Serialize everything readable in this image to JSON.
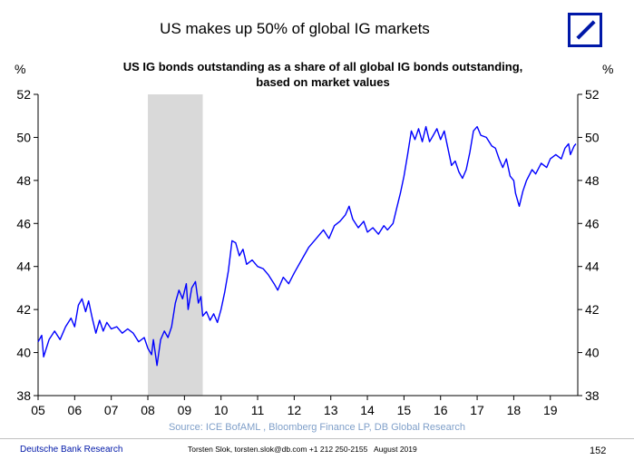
{
  "page": {
    "title": "US makes up 50% of global IG markets",
    "source": "Source: ICE BofAML , Bloomberg Finance LP, DB Global Research",
    "footer_left": "Deutsche Bank Research",
    "footer_author": "Torsten Slok, torsten.slok@db.com +1 212 250-2155",
    "footer_date": "August 2019",
    "page_number": "152",
    "brand_color": "#0018a8"
  },
  "chart_data": {
    "type": "line",
    "subtitle_line1": "US IG bonds outstanding as a share of all global IG bonds outstanding,",
    "subtitle_line2": "based on market values",
    "left_unit": "%",
    "right_unit": "%",
    "ylim": [
      38,
      52
    ],
    "yticks": [
      "38",
      "40",
      "42",
      "44",
      "46",
      "48",
      "50",
      "52"
    ],
    "xlim": [
      2005,
      2019.75
    ],
    "xticks": [
      {
        "x": 2005,
        "label": "05"
      },
      {
        "x": 2006,
        "label": "06"
      },
      {
        "x": 2007,
        "label": "07"
      },
      {
        "x": 2008,
        "label": "08"
      },
      {
        "x": 2009,
        "label": "09"
      },
      {
        "x": 2010,
        "label": "10"
      },
      {
        "x": 2011,
        "label": "11"
      },
      {
        "x": 2012,
        "label": "12"
      },
      {
        "x": 2013,
        "label": "13"
      },
      {
        "x": 2014,
        "label": "14"
      },
      {
        "x": 2015,
        "label": "15"
      },
      {
        "x": 2016,
        "label": "16"
      },
      {
        "x": 2017,
        "label": "17"
      },
      {
        "x": 2018,
        "label": "18"
      },
      {
        "x": 2019,
        "label": "19"
      }
    ],
    "recession": {
      "start": 2008.0,
      "end": 2009.5,
      "color": "#d9d9d9"
    },
    "series": [
      {
        "name": "US IG share",
        "color": "#0000ff",
        "points": [
          [
            2005.0,
            40.5
          ],
          [
            2005.1,
            40.8
          ],
          [
            2005.15,
            39.8
          ],
          [
            2005.3,
            40.6
          ],
          [
            2005.45,
            41.0
          ],
          [
            2005.6,
            40.6
          ],
          [
            2005.75,
            41.2
          ],
          [
            2005.9,
            41.6
          ],
          [
            2006.0,
            41.2
          ],
          [
            2006.1,
            42.2
          ],
          [
            2006.2,
            42.5
          ],
          [
            2006.3,
            41.9
          ],
          [
            2006.38,
            42.4
          ],
          [
            2006.48,
            41.6
          ],
          [
            2006.58,
            40.9
          ],
          [
            2006.68,
            41.5
          ],
          [
            2006.78,
            41.0
          ],
          [
            2006.88,
            41.4
          ],
          [
            2007.0,
            41.1
          ],
          [
            2007.15,
            41.2
          ],
          [
            2007.3,
            40.9
          ],
          [
            2007.45,
            41.1
          ],
          [
            2007.6,
            40.9
          ],
          [
            2007.75,
            40.5
          ],
          [
            2007.9,
            40.7
          ],
          [
            2008.0,
            40.2
          ],
          [
            2008.1,
            39.9
          ],
          [
            2008.15,
            40.6
          ],
          [
            2008.25,
            39.4
          ],
          [
            2008.35,
            40.6
          ],
          [
            2008.45,
            41.0
          ],
          [
            2008.55,
            40.7
          ],
          [
            2008.65,
            41.2
          ],
          [
            2008.75,
            42.3
          ],
          [
            2008.85,
            42.9
          ],
          [
            2008.95,
            42.5
          ],
          [
            2009.05,
            43.2
          ],
          [
            2009.1,
            42.0
          ],
          [
            2009.2,
            43.0
          ],
          [
            2009.3,
            43.3
          ],
          [
            2009.38,
            42.3
          ],
          [
            2009.45,
            42.6
          ],
          [
            2009.5,
            41.7
          ],
          [
            2009.6,
            41.9
          ],
          [
            2009.7,
            41.5
          ],
          [
            2009.8,
            41.8
          ],
          [
            2009.9,
            41.4
          ],
          [
            2010.0,
            42.0
          ],
          [
            2010.1,
            42.8
          ],
          [
            2010.2,
            43.8
          ],
          [
            2010.3,
            45.2
          ],
          [
            2010.4,
            45.1
          ],
          [
            2010.5,
            44.5
          ],
          [
            2010.6,
            44.8
          ],
          [
            2010.7,
            44.1
          ],
          [
            2010.85,
            44.3
          ],
          [
            2011.0,
            44.0
          ],
          [
            2011.15,
            43.9
          ],
          [
            2011.3,
            43.6
          ],
          [
            2011.45,
            43.2
          ],
          [
            2011.55,
            42.9
          ],
          [
            2011.7,
            43.5
          ],
          [
            2011.85,
            43.2
          ],
          [
            2012.0,
            43.7
          ],
          [
            2012.2,
            44.3
          ],
          [
            2012.4,
            44.9
          ],
          [
            2012.6,
            45.3
          ],
          [
            2012.8,
            45.7
          ],
          [
            2012.95,
            45.3
          ],
          [
            2013.1,
            45.9
          ],
          [
            2013.25,
            46.1
          ],
          [
            2013.4,
            46.4
          ],
          [
            2013.5,
            46.8
          ],
          [
            2013.6,
            46.2
          ],
          [
            2013.75,
            45.8
          ],
          [
            2013.9,
            46.1
          ],
          [
            2014.0,
            45.6
          ],
          [
            2014.15,
            45.8
          ],
          [
            2014.3,
            45.5
          ],
          [
            2014.45,
            45.9
          ],
          [
            2014.55,
            45.7
          ],
          [
            2014.7,
            46.0
          ],
          [
            2014.8,
            46.7
          ],
          [
            2014.9,
            47.4
          ],
          [
            2015.0,
            48.2
          ],
          [
            2015.1,
            49.2
          ],
          [
            2015.2,
            50.3
          ],
          [
            2015.3,
            49.9
          ],
          [
            2015.4,
            50.4
          ],
          [
            2015.5,
            49.8
          ],
          [
            2015.6,
            50.5
          ],
          [
            2015.7,
            49.8
          ],
          [
            2015.8,
            50.1
          ],
          [
            2015.9,
            50.4
          ],
          [
            2016.0,
            49.9
          ],
          [
            2016.1,
            50.3
          ],
          [
            2016.2,
            49.5
          ],
          [
            2016.3,
            48.7
          ],
          [
            2016.4,
            48.9
          ],
          [
            2016.5,
            48.4
          ],
          [
            2016.6,
            48.1
          ],
          [
            2016.7,
            48.5
          ],
          [
            2016.8,
            49.3
          ],
          [
            2016.9,
            50.3
          ],
          [
            2017.0,
            50.5
          ],
          [
            2017.1,
            50.1
          ],
          [
            2017.25,
            50.0
          ],
          [
            2017.4,
            49.6
          ],
          [
            2017.5,
            49.5
          ],
          [
            2017.6,
            49.0
          ],
          [
            2017.7,
            48.6
          ],
          [
            2017.8,
            49.0
          ],
          [
            2017.9,
            48.2
          ],
          [
            2018.0,
            48.0
          ],
          [
            2018.05,
            47.4
          ],
          [
            2018.15,
            46.8
          ],
          [
            2018.25,
            47.5
          ],
          [
            2018.35,
            48.0
          ],
          [
            2018.5,
            48.5
          ],
          [
            2018.6,
            48.3
          ],
          [
            2018.75,
            48.8
          ],
          [
            2018.9,
            48.6
          ],
          [
            2019.0,
            49.0
          ],
          [
            2019.15,
            49.2
          ],
          [
            2019.3,
            49.0
          ],
          [
            2019.4,
            49.5
          ],
          [
            2019.5,
            49.7
          ],
          [
            2019.55,
            49.2
          ],
          [
            2019.65,
            49.6
          ],
          [
            2019.7,
            49.7
          ]
        ]
      }
    ]
  }
}
